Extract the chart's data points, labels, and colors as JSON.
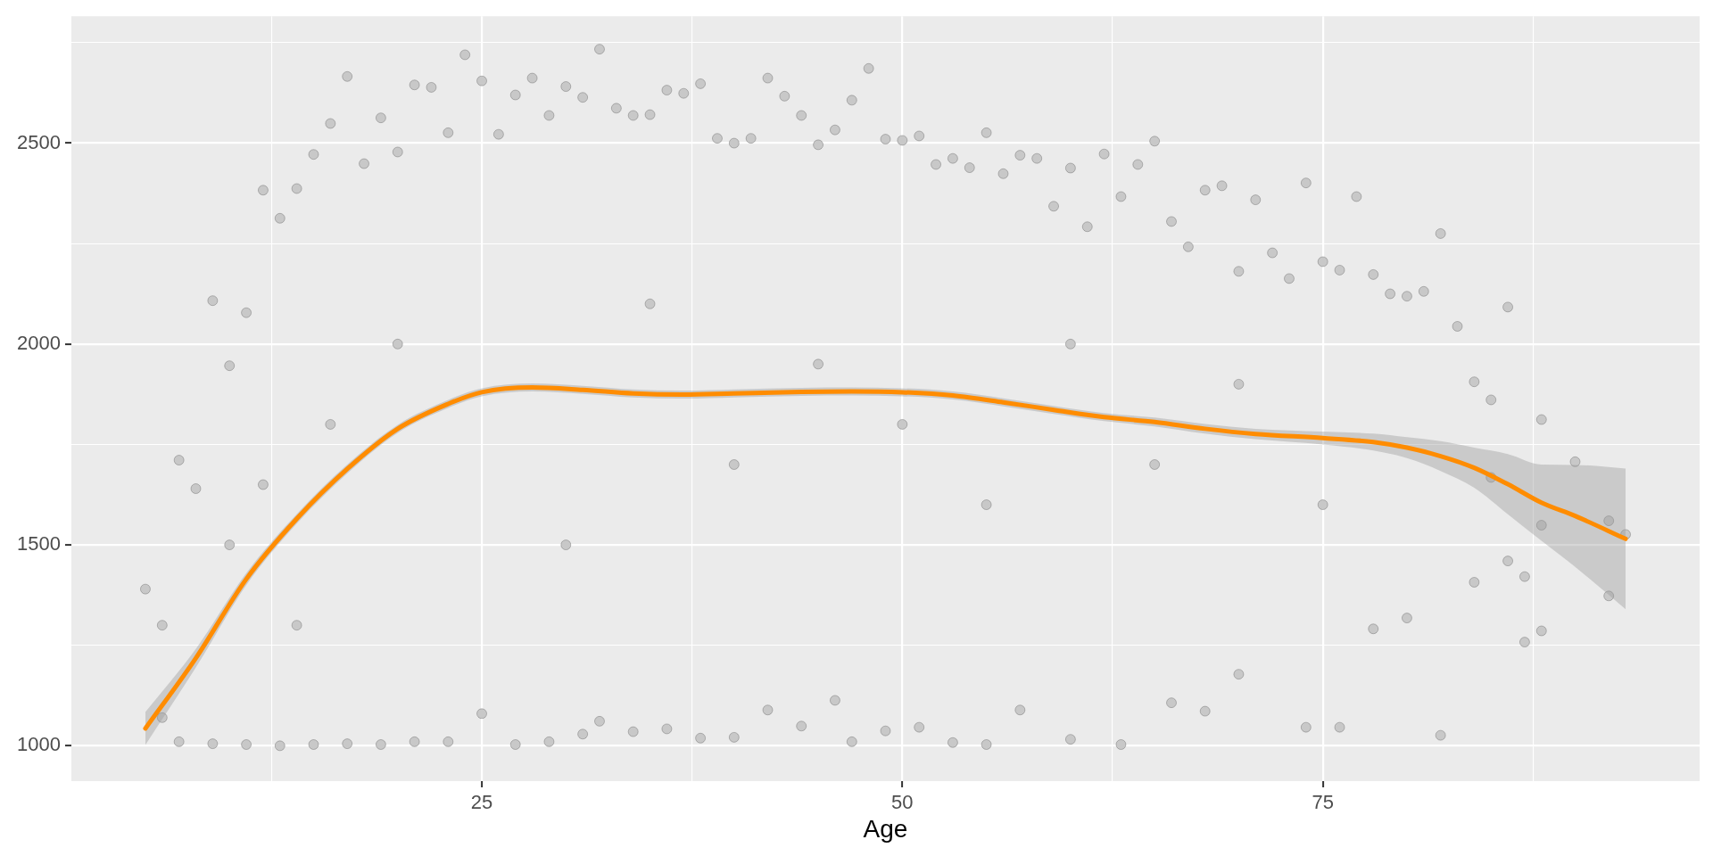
{
  "chart_data": {
    "type": "scatter",
    "xlabel": "Age",
    "xlim": [
      0.6,
      97.4
    ],
    "ylim": [
      912,
      2816
    ],
    "grid": true,
    "xticks": [
      {
        "value": 12.5,
        "label": null
      },
      25,
      {
        "value": 37.5,
        "label": null
      },
      50,
      {
        "value": 62.5,
        "label": null
      },
      75,
      {
        "value": 87.5,
        "label": null
      }
    ],
    "yticks": [
      1000,
      {
        "value": 1250,
        "label": null
      },
      1500,
      {
        "value": 1750,
        "label": null
      },
      2000,
      {
        "value": 2250,
        "label": null
      },
      2500,
      {
        "value": 2750,
        "label": null
      }
    ],
    "series": [
      {
        "color": "#c8c8c8",
        "marker": "circle",
        "x": [
          5,
          6,
          7,
          8,
          9,
          10,
          11,
          12,
          13,
          14,
          15,
          16,
          17,
          18,
          19,
          20,
          21,
          22,
          23,
          24,
          25,
          26,
          27,
          28,
          29,
          30,
          31,
          32,
          33,
          34,
          35,
          36,
          37,
          38,
          39,
          40,
          41,
          42,
          43,
          44,
          45,
          46,
          47,
          48,
          49,
          50,
          51,
          52,
          53,
          54,
          55,
          56,
          57,
          58,
          59,
          60,
          61,
          62,
          63,
          64,
          65,
          66,
          67,
          68,
          69,
          70,
          71,
          72,
          73,
          74,
          75,
          76,
          77,
          78,
          79,
          80,
          81,
          82,
          83,
          84,
          85,
          86,
          87,
          88,
          90,
          92,
          93,
          6,
          7,
          9,
          11,
          13,
          15,
          17,
          19,
          21,
          23,
          25,
          27,
          29,
          31,
          32,
          34,
          36,
          38,
          40,
          42,
          44,
          46,
          47,
          49,
          51,
          53,
          55,
          57,
          60,
          63,
          66,
          68,
          70,
          74,
          76,
          78,
          80,
          82,
          84,
          86,
          87,
          88,
          92,
          10,
          12,
          14,
          16,
          20,
          30,
          35,
          40,
          45,
          50,
          55,
          60,
          65,
          70,
          75,
          85,
          88
        ],
        "values": [
          1390,
          1300,
          1711,
          1640,
          2108,
          1946,
          2078,
          2383,
          2313,
          2387,
          2472,
          2549,
          2666,
          2449,
          2563,
          2478,
          2645,
          2639,
          2526,
          2720,
          2655,
          2522,
          2620,
          2662,
          2569,
          2641,
          2614,
          2734,
          2587,
          2569,
          2571,
          2632,
          2624,
          2648,
          2512,
          2500,
          2512,
          2662,
          2617,
          2569,
          2496,
          2533,
          2607,
          2686,
          2510,
          2507,
          2518,
          2447,
          2462,
          2439,
          2526,
          2424,
          2470,
          2462,
          2343,
          2438,
          2292,
          2473,
          2367,
          2447,
          2505,
          2305,
          2242,
          2383,
          2394,
          2181,
          2359,
          2227,
          2163,
          2401,
          2205,
          2184,
          2367,
          2173,
          2125,
          2119,
          2131,
          2275,
          2044,
          1906,
          1861,
          2092,
          1421,
          1812,
          1707,
          1560,
          1526,
          1070,
          1010,
          1005,
          1003,
          1000,
          1003,
          1005,
          1003,
          1010,
          1010,
          1080,
          1003,
          1010,
          1029,
          1061,
          1035,
          1042,
          1019,
          1021,
          1089,
          1049,
          1113,
          1010,
          1037,
          1046,
          1008,
          1003,
          1089,
          1016,
          1003,
          1107,
          1086,
          1178,
          1046,
          1046,
          1291,
          1318,
          1026,
          1407,
          1460,
          1258,
          1286,
          1373,
          1500,
          1650,
          1300,
          1800,
          2000,
          1500,
          2100,
          1700,
          1950,
          1800,
          1600,
          2000,
          1700,
          1900,
          1600,
          1668,
          1549
        ]
      },
      {
        "type": "line",
        "color": "#ff8c00",
        "marker": "none",
        "line_style": "solid",
        "x": [
          5,
          8,
          11,
          14,
          17,
          20,
          23,
          25,
          28,
          31,
          34,
          37,
          40,
          44,
          47,
          50,
          53,
          56,
          59,
          62,
          65,
          68,
          71,
          75,
          78,
          80,
          82,
          84,
          86,
          88,
          90,
          93
        ],
        "values": [
          1043,
          1218,
          1415,
          1565,
          1689,
          1789,
          1851,
          1880,
          1892,
          1886,
          1877,
          1874,
          1877,
          1881,
          1882,
          1880,
          1872,
          1855,
          1836,
          1818,
          1806,
          1789,
          1776,
          1766,
          1756,
          1742,
          1721,
          1692,
          1651,
          1605,
          1572,
          1515
        ],
        "lower": [
          1002,
          1195,
          1400,
          1553,
          1678,
          1779,
          1841,
          1870,
          1882,
          1876,
          1867,
          1864,
          1867,
          1871,
          1872,
          1870,
          1862,
          1845,
          1826,
          1808,
          1795,
          1777,
          1763,
          1750,
          1735,
          1716,
          1684,
          1642,
          1576,
          1510,
          1445,
          1340
        ],
        "upper": [
          1084,
          1241,
          1430,
          1577,
          1700,
          1799,
          1861,
          1890,
          1902,
          1896,
          1887,
          1884,
          1887,
          1891,
          1892,
          1890,
          1882,
          1865,
          1846,
          1828,
          1817,
          1801,
          1789,
          1782,
          1777,
          1768,
          1758,
          1742,
          1726,
          1700,
          1699,
          1690
        ]
      }
    ]
  }
}
